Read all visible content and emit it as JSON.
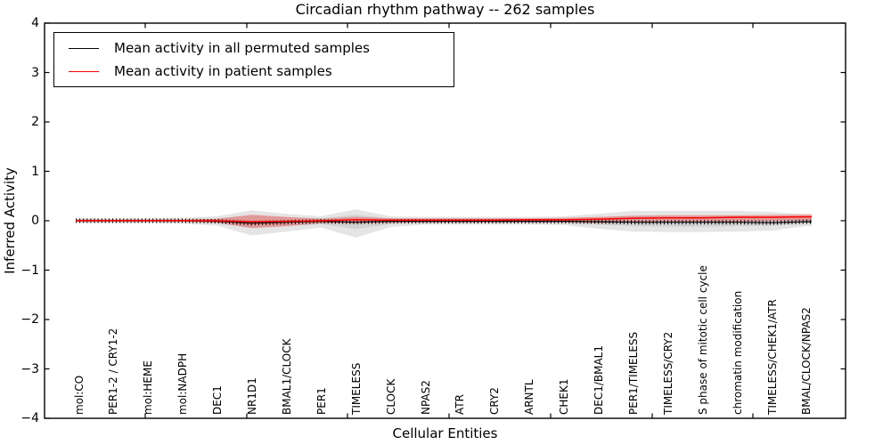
{
  "chart_data": {
    "type": "line",
    "title": "Circadian rhythm pathway -- 262 samples",
    "xlabel": "Cellular Entities",
    "ylabel": "Inferred Activity",
    "ylim": [
      -4,
      4
    ],
    "ytick_labels": [
      "4",
      "3",
      "2",
      "1",
      "0",
      "−1",
      "−2",
      "−3",
      "−4"
    ],
    "grid": false,
    "legend_position": "upper left",
    "categories": [
      "mol:CO",
      "PER1-2 / CRY1-2",
      "mol:HEME",
      "mol:NADPH",
      "DEC1",
      "NR1D1",
      "BMAL1/CLOCK",
      "PER1",
      "TIMELESS",
      "CLOCK",
      "NPAS2",
      "ATR",
      "CRY2",
      "ARNTL",
      "CHEK1",
      "DEC1/BMAL1",
      "PER1/TIMELESS",
      "TIMELESS/CRY2",
      "S phase of mitotic cell cycle",
      "chromatin modification",
      "TIMELESS/CHEK1/ATR",
      "BMAL/CLOCK/NPAS2"
    ],
    "series": [
      {
        "name": "Mean activity in all permuted samples",
        "color": "#000000",
        "marker": "vertical-dash",
        "values": [
          0,
          0,
          0,
          0,
          -0.01,
          -0.05,
          -0.03,
          -0.01,
          -0.03,
          -0.01,
          -0.01,
          -0.01,
          -0.01,
          -0.01,
          -0.01,
          -0.02,
          -0.03,
          -0.03,
          -0.03,
          -0.03,
          -0.04,
          -0.02
        ]
      },
      {
        "name": "Mean activity in patient samples",
        "color": "#ff0000",
        "marker": "none",
        "values": [
          0,
          0,
          0,
          0,
          0,
          -0.02,
          -0.01,
          0,
          0.02,
          0.01,
          0.01,
          0.01,
          0.01,
          0.02,
          0.02,
          0.03,
          0.05,
          0.06,
          0.06,
          0.07,
          0.07,
          0.08
        ]
      }
    ],
    "bands": [
      {
        "name": "permuted-envelope-outer",
        "fill": "rgba(0,0,0,0.10)",
        "hi": [
          0.05,
          0.05,
          0.05,
          0.06,
          0.09,
          0.21,
          0.14,
          0.09,
          0.23,
          0.09,
          0.08,
          0.08,
          0.08,
          0.08,
          0.09,
          0.14,
          0.2,
          0.2,
          0.2,
          0.2,
          0.18,
          0.13
        ],
        "lo": [
          -0.05,
          -0.05,
          -0.05,
          -0.06,
          -0.1,
          -0.3,
          -0.22,
          -0.14,
          -0.34,
          -0.13,
          -0.08,
          -0.08,
          -0.08,
          -0.08,
          -0.09,
          -0.16,
          -0.22,
          -0.23,
          -0.23,
          -0.22,
          -0.2,
          -0.11
        ]
      },
      {
        "name": "permuted-envelope-inner",
        "fill": "rgba(0,0,0,0.08)",
        "hi": [
          0.03,
          0.03,
          0.03,
          0.03,
          0.05,
          0.11,
          0.07,
          0.05,
          0.12,
          0.05,
          0.04,
          0.04,
          0.04,
          0.04,
          0.05,
          0.07,
          0.1,
          0.1,
          0.1,
          0.1,
          0.09,
          0.07
        ],
        "lo": [
          -0.03,
          -0.03,
          -0.03,
          -0.03,
          -0.05,
          -0.15,
          -0.11,
          -0.07,
          -0.17,
          -0.07,
          -0.04,
          -0.04,
          -0.04,
          -0.04,
          -0.05,
          -0.08,
          -0.11,
          -0.12,
          -0.12,
          -0.11,
          -0.1,
          -0.06
        ]
      },
      {
        "name": "patient-envelope",
        "fill": "rgba(255,0,0,0.28)",
        "hi": [
          0.02,
          0.02,
          0.02,
          0.02,
          0.04,
          0.12,
          0.08,
          0.04,
          0.08,
          0.05,
          0.05,
          0.05,
          0.05,
          0.05,
          0.06,
          0.08,
          0.1,
          0.11,
          0.11,
          0.11,
          0.12,
          0.13
        ],
        "lo": [
          -0.02,
          -0.02,
          -0.02,
          -0.02,
          -0.04,
          -0.15,
          -0.11,
          -0.05,
          -0.05,
          -0.04,
          -0.03,
          -0.03,
          -0.03,
          -0.03,
          -0.03,
          -0.05,
          -0.03,
          -0.02,
          -0.02,
          -0.02,
          -0.01,
          0.0
        ]
      }
    ]
  }
}
